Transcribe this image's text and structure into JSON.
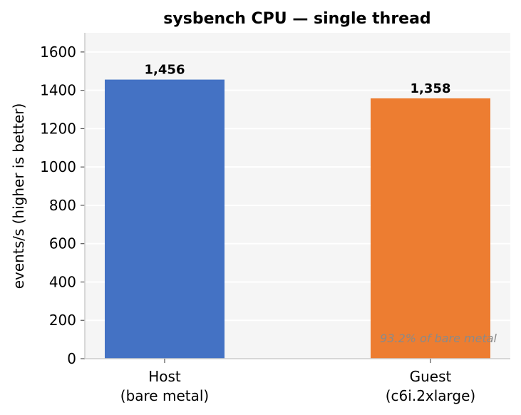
{
  "chart_data": {
    "type": "bar",
    "title": "sysbench CPU — single thread",
    "xlabel": "",
    "ylabel": "events/s  (higher is better)",
    "categories": [
      [
        "Host",
        "(bare metal)"
      ],
      [
        "Guest",
        "(c6i.2xlarge)"
      ]
    ],
    "values": [
      1456,
      1358
    ],
    "value_labels": [
      "1,456",
      "1,358"
    ],
    "colors": [
      "#4472c4",
      "#ed7d31"
    ],
    "ylim": [
      0,
      1700
    ],
    "yticks": [
      0,
      200,
      400,
      600,
      800,
      1000,
      1200,
      1400,
      1600
    ],
    "grid": true,
    "background": "#f5f5f5",
    "annotation": "93.2% of bare metal"
  }
}
